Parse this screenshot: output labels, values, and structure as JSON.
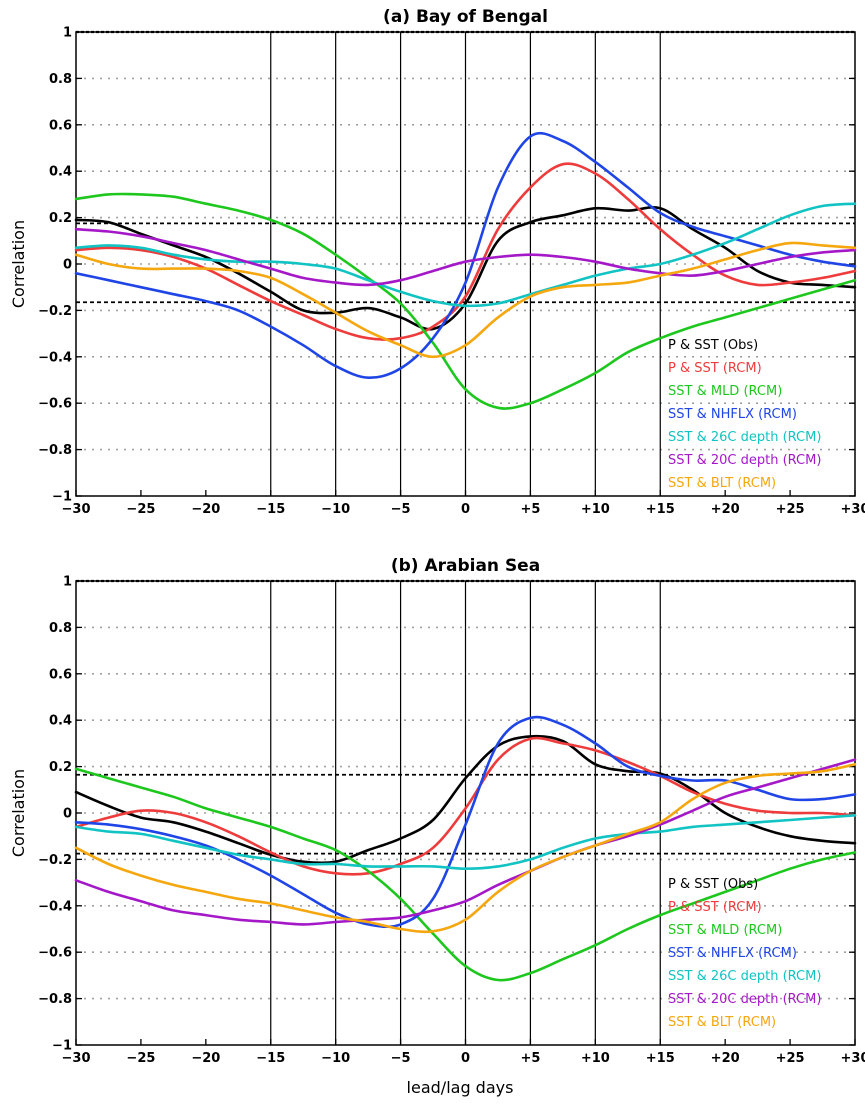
{
  "figure": {
    "xlabel": "lead/lag days"
  },
  "colors": {
    "obs": "#000000",
    "p_sst_rcm": "#ee3b3b",
    "mld": "#1ec71e",
    "nhflx": "#1f45e6",
    "d26": "#12c3c3",
    "d20": "#a418c8",
    "blt": "#f5a70f"
  },
  "chart_data": [
    {
      "type": "line",
      "title": "(a) Bay of Bengal",
      "xlabel": "",
      "ylabel": "Correlation",
      "xlim": [
        -30,
        30
      ],
      "ylim": [
        -1,
        1
      ],
      "xticks": [
        -30,
        -25,
        -20,
        -15,
        -10,
        -5,
        0,
        5,
        10,
        15,
        20,
        25,
        30
      ],
      "xtick_labels": [
        "−30",
        "−25",
        "−20",
        "−15",
        "−10",
        "−5",
        "0",
        "+5",
        "+10",
        "+15",
        "+20",
        "+25",
        "+30"
      ],
      "yticks": [
        -1,
        -0.8,
        -0.6,
        -0.4,
        -0.2,
        0,
        0.2,
        0.4,
        0.6,
        0.8,
        1
      ],
      "ytick_labels": [
        "−1",
        "−0.8",
        "−0.6",
        "−0.4",
        "−0.2",
        "0",
        "0.2",
        "0.4",
        "0.6",
        "0.8",
        "1"
      ],
      "grid": "horizontal dotted",
      "vlines": [
        -15,
        -10,
        -5,
        0,
        5,
        10,
        15
      ],
      "significance_lines": [
        0.175,
        -0.165
      ],
      "legend_position": "bottom-right",
      "series": [
        {
          "name": "P & SST (Obs)",
          "color_key": "obs",
          "x": [
            -30,
            -27.5,
            -25,
            -22.5,
            -20,
            -17.5,
            -15,
            -12.5,
            -10,
            -7.5,
            -5,
            -2.5,
            0,
            2.5,
            5,
            7.5,
            10,
            12.5,
            15,
            17.5,
            20,
            22.5,
            25,
            27.5,
            30
          ],
          "y": [
            0.19,
            0.18,
            0.13,
            0.08,
            0.03,
            -0.04,
            -0.12,
            -0.2,
            -0.21,
            -0.19,
            -0.23,
            -0.28,
            -0.17,
            0.1,
            0.18,
            0.21,
            0.24,
            0.23,
            0.24,
            0.15,
            0.07,
            -0.03,
            -0.08,
            -0.09,
            -0.1
          ]
        },
        {
          "name": "P & SST (RCM)",
          "color_key": "p_sst_rcm",
          "x": [
            -30,
            -27.5,
            -25,
            -22.5,
            -20,
            -17.5,
            -15,
            -12.5,
            -10,
            -7.5,
            -5,
            -2.5,
            0,
            2.5,
            5,
            7.5,
            10,
            12.5,
            15,
            17.5,
            20,
            22.5,
            25,
            27.5,
            30
          ],
          "y": [
            0.06,
            0.07,
            0.06,
            0.03,
            -0.02,
            -0.09,
            -0.16,
            -0.22,
            -0.28,
            -0.32,
            -0.32,
            -0.27,
            -0.14,
            0.15,
            0.33,
            0.43,
            0.39,
            0.28,
            0.15,
            0.04,
            -0.05,
            -0.09,
            -0.08,
            -0.06,
            -0.03
          ]
        },
        {
          "name": "SST & MLD (RCM)",
          "color_key": "mld",
          "x": [
            -30,
            -27.5,
            -25,
            -22.5,
            -20,
            -17.5,
            -15,
            -12.5,
            -10,
            -7.5,
            -5,
            -2.5,
            0,
            2.5,
            5,
            7.5,
            10,
            12.5,
            15,
            17.5,
            20,
            22.5,
            25,
            27.5,
            30
          ],
          "y": [
            0.28,
            0.3,
            0.3,
            0.29,
            0.26,
            0.23,
            0.19,
            0.13,
            0.04,
            -0.06,
            -0.17,
            -0.34,
            -0.54,
            -0.62,
            -0.6,
            -0.54,
            -0.47,
            -0.38,
            -0.32,
            -0.27,
            -0.23,
            -0.19,
            -0.15,
            -0.11,
            -0.07
          ]
        },
        {
          "name": "SST & NHFLX (RCM)",
          "color_key": "nhflx",
          "x": [
            -30,
            -27.5,
            -25,
            -22.5,
            -20,
            -17.5,
            -15,
            -12.5,
            -10,
            -7.5,
            -5,
            -2.5,
            0,
            2.5,
            5,
            7.5,
            10,
            12.5,
            15,
            17.5,
            20,
            22.5,
            25,
            27.5,
            30
          ],
          "y": [
            -0.04,
            -0.07,
            -0.1,
            -0.13,
            -0.16,
            -0.2,
            -0.27,
            -0.35,
            -0.44,
            -0.49,
            -0.45,
            -0.32,
            -0.08,
            0.33,
            0.55,
            0.53,
            0.44,
            0.33,
            0.22,
            0.16,
            0.12,
            0.08,
            0.04,
            0.01,
            -0.01
          ]
        },
        {
          "name": "SST & 26C depth (RCM)",
          "color_key": "d26",
          "x": [
            -30,
            -27.5,
            -25,
            -22.5,
            -20,
            -17.5,
            -15,
            -12.5,
            -10,
            -7.5,
            -5,
            -2.5,
            0,
            2.5,
            5,
            7.5,
            10,
            12.5,
            15,
            17.5,
            20,
            22.5,
            25,
            27.5,
            30
          ],
          "y": [
            0.07,
            0.08,
            0.07,
            0.04,
            0.02,
            0.01,
            0.01,
            0.0,
            -0.02,
            -0.07,
            -0.12,
            -0.16,
            -0.18,
            -0.17,
            -0.13,
            -0.09,
            -0.05,
            -0.02,
            0.0,
            0.04,
            0.09,
            0.15,
            0.21,
            0.25,
            0.26
          ]
        },
        {
          "name": "SST & 20C depth (RCM)",
          "color_key": "d20",
          "x": [
            -30,
            -27.5,
            -25,
            -22.5,
            -20,
            -17.5,
            -15,
            -12.5,
            -10,
            -7.5,
            -5,
            -2.5,
            0,
            2.5,
            5,
            7.5,
            10,
            12.5,
            15,
            17.5,
            20,
            22.5,
            25,
            27.5,
            30
          ],
          "y": [
            0.15,
            0.14,
            0.12,
            0.09,
            0.06,
            0.02,
            -0.02,
            -0.06,
            -0.08,
            -0.09,
            -0.07,
            -0.03,
            0.01,
            0.03,
            0.04,
            0.03,
            0.01,
            -0.02,
            -0.04,
            -0.05,
            -0.03,
            0.0,
            0.03,
            0.05,
            0.06
          ]
        },
        {
          "name": "SST & BLT (RCM)",
          "color_key": "blt",
          "x": [
            -30,
            -27.5,
            -25,
            -22.5,
            -20,
            -17.5,
            -15,
            -12.5,
            -10,
            -7.5,
            -5,
            -2.5,
            0,
            2.5,
            5,
            7.5,
            10,
            12.5,
            15,
            17.5,
            20,
            22.5,
            25,
            27.5,
            30
          ],
          "y": [
            0.04,
            0.0,
            -0.02,
            -0.02,
            -0.02,
            -0.03,
            -0.06,
            -0.13,
            -0.21,
            -0.29,
            -0.35,
            -0.4,
            -0.35,
            -0.23,
            -0.14,
            -0.1,
            -0.09,
            -0.08,
            -0.05,
            -0.02,
            0.02,
            0.06,
            0.09,
            0.08,
            0.07
          ]
        }
      ]
    },
    {
      "type": "line",
      "title": "(b) Arabian Sea",
      "xlabel": "lead/lag days",
      "ylabel": "Correlation",
      "xlim": [
        -30,
        30
      ],
      "ylim": [
        -1,
        1
      ],
      "xticks": [
        -30,
        -25,
        -20,
        -15,
        -10,
        -5,
        0,
        5,
        10,
        15,
        20,
        25,
        30
      ],
      "xtick_labels": [
        "−30",
        "−25",
        "−20",
        "−15",
        "−10",
        "−5",
        "0",
        "+5",
        "+10",
        "+15",
        "+20",
        "+25",
        "+30"
      ],
      "yticks": [
        -1,
        -0.8,
        -0.6,
        -0.4,
        -0.2,
        0,
        0.2,
        0.4,
        0.6,
        0.8,
        1
      ],
      "ytick_labels": [
        "−1",
        "−0.8",
        "−0.6",
        "−0.4",
        "−0.2",
        "0",
        "0.2",
        "0.4",
        "0.6",
        "0.8",
        "1"
      ],
      "grid": "horizontal dotted",
      "vlines": [
        -15,
        -10,
        -5,
        0,
        5,
        10,
        15
      ],
      "significance_lines": [
        0.165,
        -0.175
      ],
      "legend_position": "bottom-right",
      "series": [
        {
          "name": "P & SST (Obs)",
          "color_key": "obs",
          "x": [
            -30,
            -27.5,
            -25,
            -22.5,
            -20,
            -17.5,
            -15,
            -12.5,
            -10,
            -7.5,
            -5,
            -2.5,
            0,
            2.5,
            5,
            7.5,
            10,
            12.5,
            15,
            17.5,
            20,
            22.5,
            25,
            27.5,
            30
          ],
          "y": [
            0.09,
            0.03,
            -0.02,
            -0.04,
            -0.08,
            -0.13,
            -0.18,
            -0.21,
            -0.21,
            -0.16,
            -0.11,
            -0.03,
            0.15,
            0.29,
            0.33,
            0.31,
            0.21,
            0.18,
            0.17,
            0.1,
            0.0,
            -0.06,
            -0.1,
            -0.12,
            -0.13
          ]
        },
        {
          "name": "P & SST (RCM)",
          "color_key": "p_sst_rcm",
          "x": [
            -30,
            -27.5,
            -25,
            -22.5,
            -20,
            -17.5,
            -15,
            -12.5,
            -10,
            -7.5,
            -5,
            -2.5,
            0,
            2.5,
            5,
            7.5,
            10,
            12.5,
            15,
            17.5,
            20,
            22.5,
            25,
            27.5,
            30
          ],
          "y": [
            -0.06,
            -0.02,
            0.01,
            0.0,
            -0.04,
            -0.1,
            -0.17,
            -0.23,
            -0.26,
            -0.26,
            -0.22,
            -0.15,
            0.02,
            0.23,
            0.32,
            0.3,
            0.27,
            0.22,
            0.16,
            0.09,
            0.04,
            0.01,
            0.0,
            0.0,
            -0.01
          ]
        },
        {
          "name": "SST & MLD (RCM)",
          "color_key": "mld",
          "x": [
            -30,
            -27.5,
            -25,
            -22.5,
            -20,
            -17.5,
            -15,
            -12.5,
            -10,
            -7.5,
            -5,
            -2.5,
            0,
            2.5,
            5,
            7.5,
            10,
            12.5,
            15,
            17.5,
            20,
            22.5,
            25,
            27.5,
            30
          ],
          "y": [
            0.19,
            0.15,
            0.11,
            0.07,
            0.02,
            -0.02,
            -0.06,
            -0.11,
            -0.16,
            -0.25,
            -0.37,
            -0.52,
            -0.66,
            -0.72,
            -0.69,
            -0.63,
            -0.57,
            -0.5,
            -0.44,
            -0.39,
            -0.34,
            -0.29,
            -0.24,
            -0.2,
            -0.17
          ]
        },
        {
          "name": "SST & NHFLX (RCM)",
          "color_key": "nhflx",
          "x": [
            -30,
            -27.5,
            -25,
            -22.5,
            -20,
            -17.5,
            -15,
            -12.5,
            -10,
            -7.5,
            -5,
            -2.5,
            0,
            2.5,
            5,
            7.5,
            10,
            12.5,
            15,
            17.5,
            20,
            22.5,
            25,
            27.5,
            30
          ],
          "y": [
            -0.04,
            -0.05,
            -0.07,
            -0.1,
            -0.14,
            -0.2,
            -0.27,
            -0.35,
            -0.43,
            -0.48,
            -0.48,
            -0.37,
            -0.05,
            0.3,
            0.41,
            0.38,
            0.3,
            0.2,
            0.16,
            0.14,
            0.14,
            0.1,
            0.06,
            0.06,
            0.08
          ]
        },
        {
          "name": "SST & 26C depth (RCM)",
          "color_key": "d26",
          "x": [
            -30,
            -27.5,
            -25,
            -22.5,
            -20,
            -17.5,
            -15,
            -12.5,
            -10,
            -7.5,
            -5,
            -2.5,
            0,
            2.5,
            5,
            7.5,
            10,
            12.5,
            15,
            17.5,
            20,
            22.5,
            25,
            27.5,
            30
          ],
          "y": [
            -0.06,
            -0.08,
            -0.09,
            -0.12,
            -0.15,
            -0.18,
            -0.2,
            -0.22,
            -0.22,
            -0.23,
            -0.23,
            -0.23,
            -0.24,
            -0.23,
            -0.2,
            -0.15,
            -0.11,
            -0.09,
            -0.08,
            -0.06,
            -0.05,
            -0.04,
            -0.03,
            -0.02,
            -0.01
          ]
        },
        {
          "name": "SST & 20C depth (RCM)",
          "color_key": "d20",
          "x": [
            -30,
            -27.5,
            -25,
            -22.5,
            -20,
            -17.5,
            -15,
            -12.5,
            -10,
            -7.5,
            -5,
            -2.5,
            0,
            2.5,
            5,
            7.5,
            10,
            12.5,
            15,
            17.5,
            20,
            22.5,
            25,
            27.5,
            30
          ],
          "y": [
            -0.29,
            -0.34,
            -0.38,
            -0.42,
            -0.44,
            -0.46,
            -0.47,
            -0.48,
            -0.47,
            -0.46,
            -0.45,
            -0.42,
            -0.38,
            -0.31,
            -0.25,
            -0.19,
            -0.14,
            -0.1,
            -0.05,
            0.01,
            0.07,
            0.11,
            0.15,
            0.19,
            0.23
          ]
        },
        {
          "name": "SST & BLT (RCM)",
          "color_key": "blt",
          "x": [
            -30,
            -27.5,
            -25,
            -22.5,
            -20,
            -17.5,
            -15,
            -12.5,
            -10,
            -7.5,
            -5,
            -2.5,
            0,
            2.5,
            5,
            7.5,
            10,
            12.5,
            15,
            17.5,
            20,
            22.5,
            25,
            27.5,
            30
          ],
          "y": [
            -0.15,
            -0.22,
            -0.27,
            -0.31,
            -0.34,
            -0.37,
            -0.39,
            -0.42,
            -0.45,
            -0.47,
            -0.5,
            -0.51,
            -0.46,
            -0.34,
            -0.25,
            -0.19,
            -0.14,
            -0.09,
            -0.04,
            0.06,
            0.13,
            0.16,
            0.17,
            0.18,
            0.21
          ]
        }
      ]
    }
  ]
}
